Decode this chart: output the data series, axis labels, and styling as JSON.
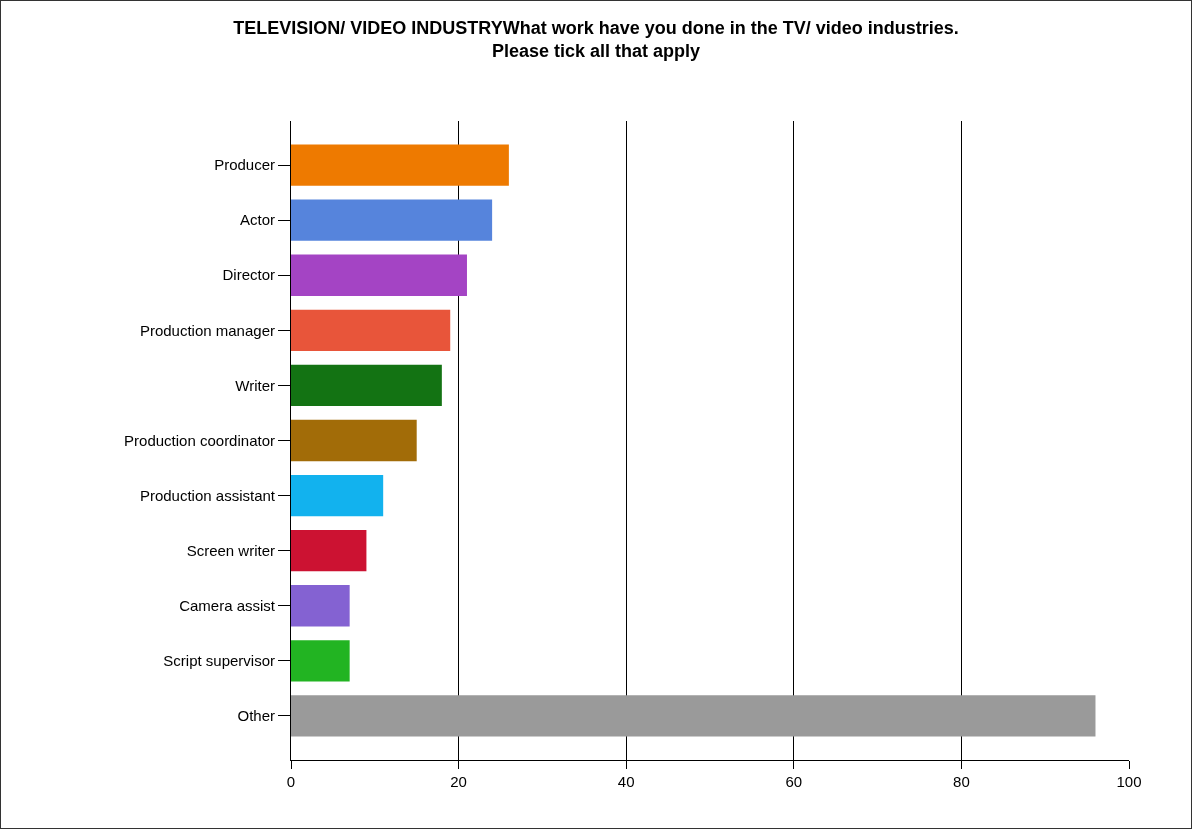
{
  "chart_data": {
    "type": "bar",
    "orientation": "horizontal",
    "title": "TELEVISION/ VIDEO INDUSTRYWhat work have you done in the TV/ video industries. Please tick all that apply",
    "categories": [
      "Producer",
      "Actor",
      "Director",
      "Production manager",
      "Writer",
      "Production coordinator",
      "Production assistant",
      "Screen writer",
      "Camera assist",
      "Script supervisor",
      "Other"
    ],
    "values": [
      26,
      24,
      21,
      19,
      18,
      15,
      11,
      9,
      7,
      7,
      96
    ],
    "colors": [
      "#ee7a00",
      "#5684dc",
      "#a444c4",
      "#e8553a",
      "#137313",
      "#a26c08",
      "#12b2ee",
      "#cc1232",
      "#8462d2",
      "#22b422",
      "#9a9a9a"
    ],
    "xlim": [
      0,
      100
    ],
    "xticks": [
      0,
      20,
      40,
      60,
      80,
      100
    ],
    "grid": "x"
  }
}
